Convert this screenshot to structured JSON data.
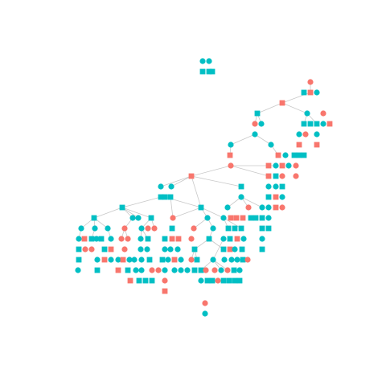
{
  "colors": {
    "male": "#00BFC4",
    "female": "#F8766D",
    "edge": "#c8c8c8",
    "background": "#ffffff"
  },
  "legend": {
    "square": "male-shape",
    "circle": "female-shape"
  },
  "node_count": 198
}
